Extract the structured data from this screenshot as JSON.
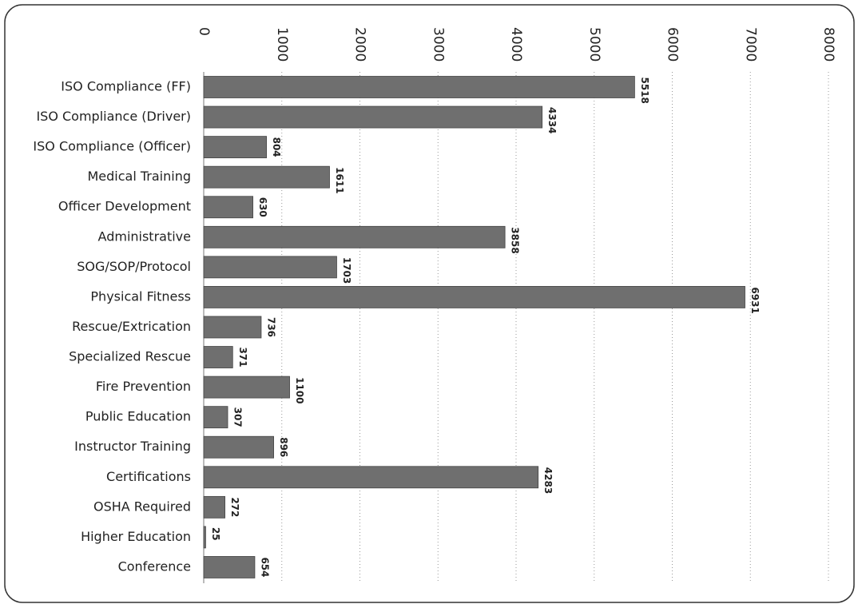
{
  "chart_data": {
    "type": "bar",
    "orientation": "horizontal",
    "categories": [
      "ISO Compliance (FF)",
      "ISO Compliance (Driver)",
      "ISO Compliance (Officer)",
      "Medical Training",
      "Officer Development",
      "Administrative",
      "SOG/SOP/Protocol",
      "Physical Fitness",
      "Rescue/Extrication",
      "Specialized Rescue",
      "Fire Prevention",
      "Public Education",
      "Instructor Training",
      "Certifications",
      "OSHA Required",
      "Higher Education",
      "Conference"
    ],
    "values": [
      5518,
      4334,
      804,
      1611,
      630,
      3858,
      1703,
      6931,
      736,
      371,
      1100,
      307,
      896,
      4283,
      272,
      25,
      654
    ],
    "color": "#6f6f6f",
    "xlim": [
      0,
      8000
    ],
    "xticks": [
      0,
      1000,
      2000,
      3000,
      4000,
      5000,
      6000,
      7000,
      8000
    ],
    "grid": true
  }
}
